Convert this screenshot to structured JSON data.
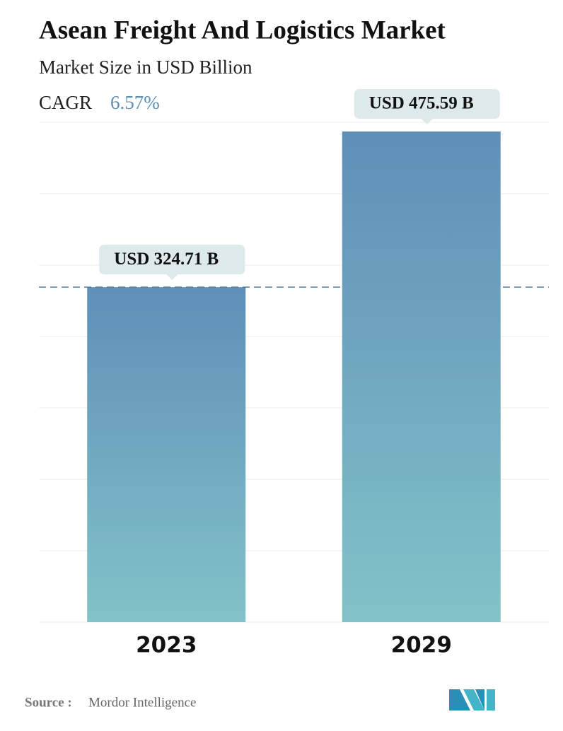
{
  "chart_data": {
    "type": "bar",
    "title": "Asean Freight And Logistics Market",
    "subtitle": "Market Size in USD Billion",
    "cagr_label": "CAGR",
    "cagr": "6.57%",
    "categories": [
      "2023",
      "2029"
    ],
    "values": [
      324.71,
      475.59
    ],
    "value_labels": [
      "USD 324.71 B",
      "USD 475.59 B"
    ],
    "colors": [
      "#5f8fb8",
      "#83c2c8"
    ],
    "source_label": "Source :",
    "source": "Mordor Intelligence"
  }
}
